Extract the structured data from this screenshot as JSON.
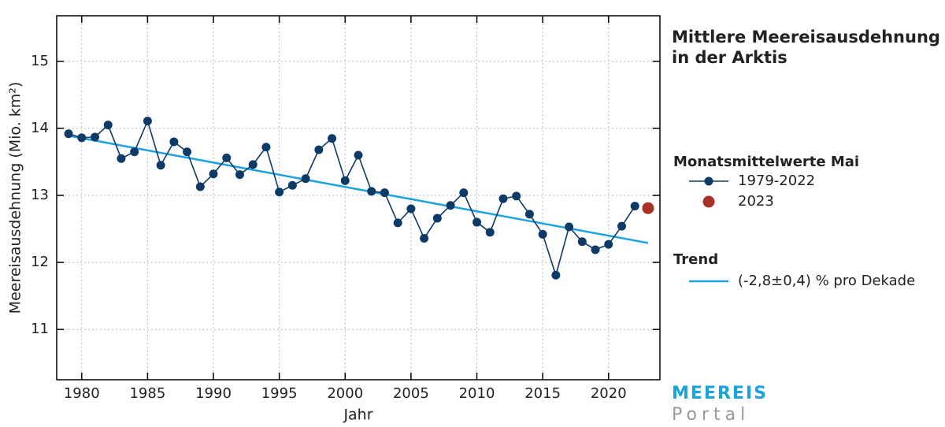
{
  "chart_data": {
    "type": "line",
    "title": [
      "Mittlere Meereisausdehnung",
      "in der Arktis"
    ],
    "x_label": "Jahr",
    "y_label": "Meereisausdehnung (Mio. km²)",
    "xlim": [
      1978.1,
      2023.9
    ],
    "ylim": [
      10.25,
      15.68
    ],
    "xticks": [
      1980,
      1985,
      1990,
      1995,
      2000,
      2005,
      2010,
      2015,
      2020
    ],
    "yticks": [
      11,
      12,
      13,
      14,
      15
    ],
    "grid": true,
    "legend_headings": [
      "Monatsmittelwerte Mai",
      "Trend"
    ],
    "series": [
      {
        "name": "1979-2022",
        "color": "#0d3a66",
        "x": [
          1979,
          1980,
          1981,
          1982,
          1983,
          1984,
          1985,
          1986,
          1987,
          1988,
          1989,
          1990,
          1991,
          1992,
          1993,
          1994,
          1995,
          1996,
          1997,
          1998,
          1999,
          2000,
          2001,
          2002,
          2003,
          2004,
          2005,
          2006,
          2007,
          2008,
          2009,
          2010,
          2011,
          2012,
          2013,
          2014,
          2015,
          2016,
          2017,
          2018,
          2019,
          2020,
          2021,
          2022
        ],
        "values": [
          13.92,
          13.86,
          13.87,
          14.05,
          13.55,
          13.65,
          14.11,
          13.45,
          13.8,
          13.65,
          13.13,
          13.32,
          13.56,
          13.31,
          13.46,
          13.72,
          13.05,
          13.15,
          13.25,
          13.68,
          13.85,
          13.22,
          13.6,
          13.06,
          13.04,
          12.59,
          12.8,
          12.36,
          12.66,
          12.85,
          13.04,
          12.6,
          12.45,
          12.95,
          12.99,
          12.72,
          12.42,
          11.81,
          12.53,
          12.31,
          12.19,
          12.27,
          12.54,
          12.84
        ]
      },
      {
        "name": "2023",
        "color": "#a93226",
        "x": [
          2023
        ],
        "values": [
          12.81
        ]
      },
      {
        "name": "(-2,8±0,4) % pro Dekade",
        "color": "#1aa3e0",
        "x": [
          1979,
          2023
        ],
        "values": [
          13.89,
          12.29
        ]
      }
    ]
  },
  "logo": {
    "line1": "MEEREIS",
    "line2": "Portal"
  }
}
